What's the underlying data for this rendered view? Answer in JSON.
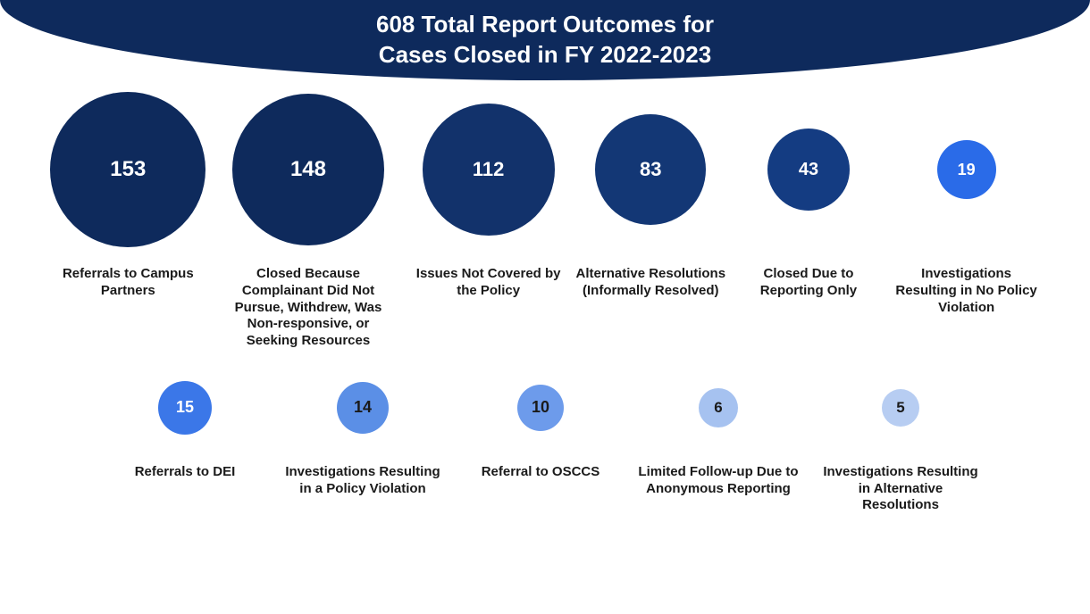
{
  "header": {
    "line1": "608 Total Report Outcomes for",
    "line2": "Cases Closed in FY 2022-2023",
    "bg_color": "#0e2a5c",
    "text_color": "#ffffff",
    "fontsize": 26
  },
  "chart": {
    "type": "bubble-infographic",
    "background_color": "#ffffff",
    "label_color": "#1a1a1a",
    "label_fontsize": 15,
    "row1": [
      {
        "value": 153,
        "label": "Referrals to Campus Partners",
        "diameter": 174,
        "bg_color": "#0e2a5c",
        "text_color": "#ffffff",
        "value_fontsize": 24,
        "item_width": 180
      },
      {
        "value": 148,
        "label": "Closed Because Complainant Did Not Pursue, Withdrew, Was Non-responsive, or Seeking Resources",
        "diameter": 170,
        "bg_color": "#0e2a5c",
        "text_color": "#ffffff",
        "value_fontsize": 24,
        "item_width": 210
      },
      {
        "value": 112,
        "label": "Issues Not Covered by the Policy",
        "diameter": 148,
        "bg_color": "#12326b",
        "text_color": "#ffffff",
        "value_fontsize": 22,
        "item_width": 180
      },
      {
        "value": 83,
        "label": "Alternative Resolutions (Informally Resolved)",
        "diameter": 124,
        "bg_color": "#133775",
        "text_color": "#ffffff",
        "value_fontsize": 22,
        "item_width": 170
      },
      {
        "value": 43,
        "label": "Closed Due to Reporting Only",
        "diameter": 92,
        "bg_color": "#143c82",
        "text_color": "#ffffff",
        "value_fontsize": 20,
        "item_width": 170
      },
      {
        "value": 19,
        "label": "Investigations Resulting in No Policy Violation",
        "diameter": 66,
        "bg_color": "#2a6be8",
        "text_color": "#ffffff",
        "value_fontsize": 18,
        "item_width": 170
      }
    ],
    "row2": [
      {
        "value": 15,
        "label": "Referrals to DEI",
        "diameter": 60,
        "bg_color": "#3b77e8",
        "text_color": "#ffffff",
        "value_fontsize": 18,
        "item_width": 180
      },
      {
        "value": 14,
        "label": "Investigations Resulting in a Policy Violation",
        "diameter": 58,
        "bg_color": "#5b8fe6",
        "text_color": "#1a1a1a",
        "value_fontsize": 18,
        "item_width": 190
      },
      {
        "value": 10,
        "label": "Referral to OSCCS",
        "diameter": 52,
        "bg_color": "#6d9beb",
        "text_color": "#1a1a1a",
        "value_fontsize": 18,
        "item_width": 180
      },
      {
        "value": 6,
        "label": "Limited Follow-up Due to Anonymous Reporting",
        "diameter": 44,
        "bg_color": "#a6c2f0",
        "text_color": "#1a1a1a",
        "value_fontsize": 17,
        "item_width": 190
      },
      {
        "value": 5,
        "label": "Investigations Resulting in Alternative Resolutions",
        "diameter": 42,
        "bg_color": "#b7cdf2",
        "text_color": "#1a1a1a",
        "value_fontsize": 17,
        "item_width": 190
      }
    ]
  }
}
